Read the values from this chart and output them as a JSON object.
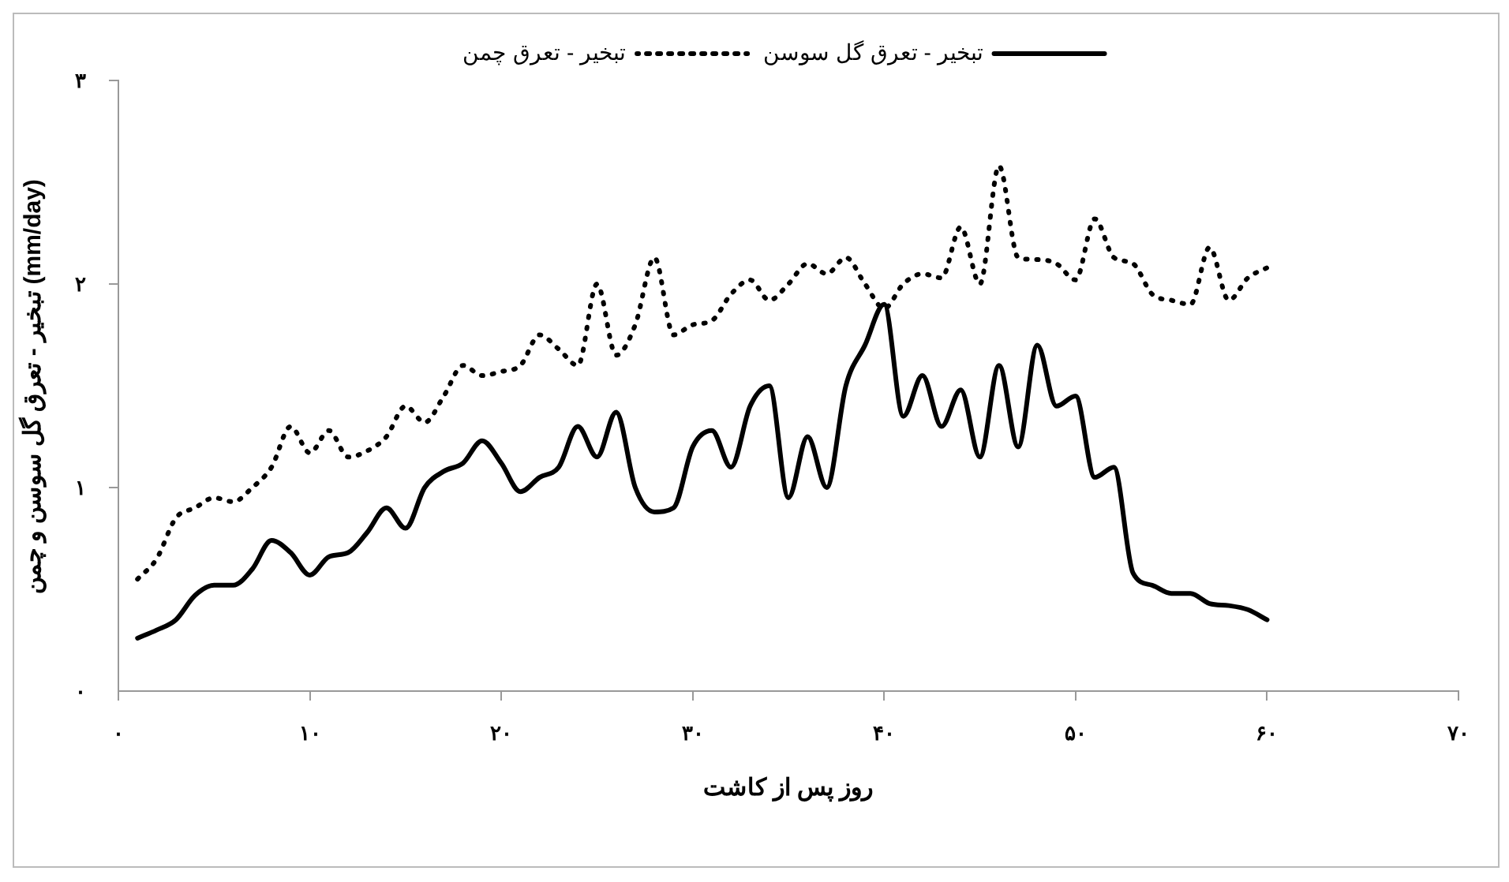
{
  "chart_data": {
    "type": "line",
    "xlabel": "روز پس از کاشت",
    "ylabel": "تبخیر - تعرق گل سوسن و چمن (mm/day)",
    "x": [
      1,
      2,
      3,
      4,
      5,
      6,
      7,
      8,
      9,
      10,
      11,
      12,
      13,
      14,
      15,
      16,
      17,
      18,
      19,
      20,
      21,
      22,
      23,
      24,
      25,
      26,
      27,
      28,
      29,
      30,
      31,
      32,
      33,
      34,
      35,
      36,
      37,
      38,
      39,
      40,
      41,
      42,
      43,
      44,
      45,
      46,
      47,
      48,
      49,
      50,
      51,
      52,
      53,
      54,
      55,
      56,
      57,
      58,
      59,
      60
    ],
    "series": [
      {
        "name": "تبخیر - تعرق گل سوسن",
        "color": "#000000",
        "line_style": "solid",
        "values": [
          0.26,
          0.3,
          0.35,
          0.47,
          0.52,
          0.52,
          0.6,
          0.74,
          0.68,
          0.57,
          0.66,
          0.68,
          0.78,
          0.9,
          0.8,
          1.0,
          1.08,
          1.12,
          1.23,
          1.12,
          0.98,
          1.05,
          1.1,
          1.3,
          1.15,
          1.37,
          1.0,
          0.88,
          0.9,
          1.2,
          1.28,
          1.1,
          1.4,
          1.5,
          0.95,
          1.25,
          1.0,
          1.5,
          1.7,
          1.9,
          1.35,
          1.55,
          1.3,
          1.48,
          1.15,
          1.6,
          1.2,
          1.7,
          1.4,
          1.45,
          1.05,
          1.1,
          0.58,
          0.52,
          0.48,
          0.48,
          0.43,
          0.42,
          0.4,
          0.35
        ]
      },
      {
        "name": "تبخیر - تعرق چمن",
        "color": "#000000",
        "line_style": "dotted",
        "values": [
          0.55,
          0.65,
          0.85,
          0.9,
          0.95,
          0.93,
          1.0,
          1.1,
          1.3,
          1.17,
          1.28,
          1.15,
          1.18,
          1.25,
          1.4,
          1.32,
          1.45,
          1.6,
          1.55,
          1.57,
          1.6,
          1.75,
          1.68,
          1.6,
          2.0,
          1.65,
          1.8,
          2.13,
          1.75,
          1.8,
          1.82,
          1.95,
          2.02,
          1.92,
          2.0,
          2.1,
          2.05,
          2.13,
          2.0,
          1.88,
          2.0,
          2.05,
          2.03,
          2.28,
          2.0,
          2.58,
          2.13,
          2.12,
          2.1,
          2.02,
          2.32,
          2.13,
          2.1,
          1.95,
          1.92,
          1.9,
          2.18,
          1.92,
          2.03,
          2.08
        ]
      }
    ],
    "xlim": [
      0,
      70
    ],
    "xticks": [
      {
        "value": 0,
        "label": "۰"
      },
      {
        "value": 10,
        "label": "۱۰"
      },
      {
        "value": 20,
        "label": "۲۰"
      },
      {
        "value": 30,
        "label": "۳۰"
      },
      {
        "value": 40,
        "label": "۴۰"
      },
      {
        "value": 50,
        "label": "۵۰"
      },
      {
        "value": 60,
        "label": "۶۰"
      },
      {
        "value": 70,
        "label": "۷۰"
      }
    ],
    "ylim": [
      0,
      3
    ],
    "yticks": [
      {
        "value": 0,
        "label": "۰"
      },
      {
        "value": 1,
        "label": "۱"
      },
      {
        "value": 2,
        "label": "۲"
      },
      {
        "value": 3,
        "label": "۳"
      }
    ],
    "grid": false,
    "legend": "top",
    "marker": "none"
  }
}
